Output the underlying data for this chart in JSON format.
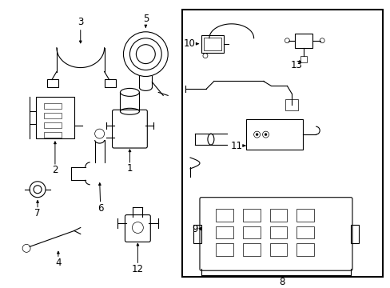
{
  "background": "#ffffff",
  "fig_width": 4.89,
  "fig_height": 3.6,
  "dpi": 100,
  "line_color": "#000000",
  "label_fontsize": 8.5
}
